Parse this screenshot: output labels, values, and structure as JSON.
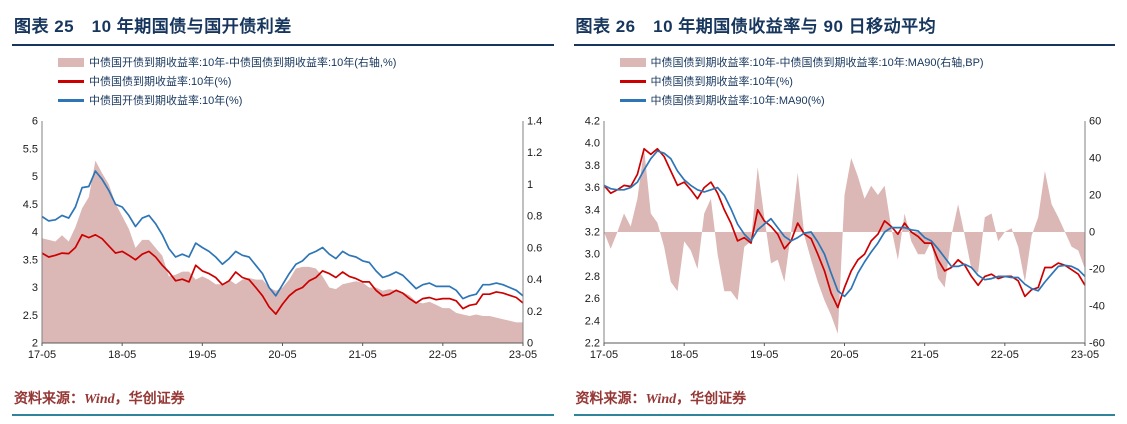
{
  "chart_data": [
    {
      "type": "line+area",
      "title": "图表 25　10 年期国债与国开债利差",
      "xlabel": "",
      "x_ticks": [
        "17-05",
        "18-05",
        "19-05",
        "20-05",
        "21-05",
        "22-05",
        "23-05"
      ],
      "x_tick_idx": [
        0,
        12,
        24,
        36,
        48,
        60,
        72
      ],
      "left_axis": {
        "min": 2,
        "max": 6,
        "ticks": [
          "6",
          "5.5",
          "5",
          "4.5",
          "4",
          "3.5",
          "3",
          "2.5",
          "2"
        ]
      },
      "right_axis": {
        "min": 0,
        "max": 1.4,
        "ticks": [
          "1.4",
          "1.2",
          "1",
          "0.8",
          "0.6",
          "0.4",
          "0.2",
          "0"
        ]
      },
      "legend": [
        {
          "label": "中债国开债到期收益率:10年-中债国债到期收益率:10年(右轴,%)",
          "color": "#dbb7b5",
          "kind": "area"
        },
        {
          "label": "中债国债到期收益率:10年(%)",
          "color": "#cc0000",
          "kind": "line"
        },
        {
          "label": "中债国开债到期收益率:10年(%)",
          "color": "#2e75b6",
          "kind": "line"
        }
      ],
      "series": [
        {
          "name": "spread-cdb-minus-cgb",
          "kind": "area",
          "axis": "right",
          "color": "#dbb7b5",
          "values": [
            0.66,
            0.65,
            0.64,
            0.68,
            0.64,
            0.73,
            0.85,
            0.92,
            1.15,
            1.07,
            1.0,
            0.88,
            0.8,
            0.72,
            0.6,
            0.65,
            0.65,
            0.6,
            0.55,
            0.42,
            0.43,
            0.45,
            0.45,
            0.4,
            0.42,
            0.4,
            0.37,
            0.37,
            0.4,
            0.37,
            0.4,
            0.41,
            0.4,
            0.4,
            0.35,
            0.33,
            0.35,
            0.4,
            0.47,
            0.48,
            0.48,
            0.47,
            0.42,
            0.35,
            0.34,
            0.37,
            0.38,
            0.39,
            0.38,
            0.35,
            0.35,
            0.33,
            0.34,
            0.33,
            0.32,
            0.3,
            0.26,
            0.25,
            0.26,
            0.24,
            0.22,
            0.22,
            0.19,
            0.18,
            0.17,
            0.18,
            0.17,
            0.17,
            0.16,
            0.15,
            0.14,
            0.13,
            0.13
          ]
        },
        {
          "name": "cgb-10y-yield",
          "kind": "line",
          "axis": "left",
          "color": "#cc0000",
          "values": [
            3.62,
            3.55,
            3.58,
            3.62,
            3.61,
            3.72,
            3.95,
            3.9,
            3.95,
            3.88,
            3.75,
            3.62,
            3.65,
            3.58,
            3.5,
            3.6,
            3.65,
            3.55,
            3.4,
            3.28,
            3.12,
            3.15,
            3.1,
            3.4,
            3.3,
            3.25,
            3.18,
            3.05,
            3.12,
            3.28,
            3.18,
            3.14,
            3.0,
            2.85,
            2.65,
            2.52,
            2.7,
            2.85,
            2.95,
            3.0,
            3.12,
            3.18,
            3.3,
            3.25,
            3.18,
            3.28,
            3.2,
            3.16,
            3.1,
            3.1,
            2.95,
            2.85,
            2.88,
            2.95,
            2.9,
            2.8,
            2.72,
            2.8,
            2.82,
            2.78,
            2.8,
            2.8,
            2.76,
            2.62,
            2.68,
            2.7,
            2.88,
            2.88,
            2.92,
            2.9,
            2.86,
            2.82,
            2.72
          ]
        },
        {
          "name": "cdb-10y-yield",
          "kind": "line",
          "axis": "left",
          "color": "#2e75b6",
          "values": [
            4.28,
            4.2,
            4.22,
            4.3,
            4.25,
            4.45,
            4.8,
            4.82,
            5.1,
            4.95,
            4.75,
            4.5,
            4.45,
            4.3,
            4.1,
            4.25,
            4.3,
            4.15,
            3.95,
            3.7,
            3.55,
            3.6,
            3.55,
            3.8,
            3.72,
            3.65,
            3.55,
            3.42,
            3.52,
            3.65,
            3.58,
            3.55,
            3.4,
            3.25,
            3.0,
            2.85,
            3.05,
            3.25,
            3.42,
            3.48,
            3.6,
            3.65,
            3.72,
            3.6,
            3.52,
            3.65,
            3.58,
            3.55,
            3.48,
            3.45,
            3.3,
            3.18,
            3.22,
            3.28,
            3.22,
            3.1,
            2.98,
            3.05,
            3.08,
            3.02,
            3.02,
            3.02,
            2.95,
            2.8,
            2.85,
            2.88,
            3.05,
            3.05,
            3.08,
            3.05,
            3.0,
            2.95,
            2.85
          ]
        }
      ],
      "source": {
        "prefix": "资料来源：",
        "wind": "Wind",
        "rest": "，华创证券"
      }
    },
    {
      "type": "line+area",
      "title": "图表 26　10 年期国债收益率与 90 日移动平均",
      "xlabel": "",
      "x_ticks": [
        "17-05",
        "18-05",
        "19-05",
        "20-05",
        "21-05",
        "22-05",
        "23-05"
      ],
      "x_tick_idx": [
        0,
        12,
        24,
        36,
        48,
        60,
        72
      ],
      "left_axis": {
        "min": 2.2,
        "max": 4.2,
        "ticks": [
          "4.2",
          "4.0",
          "3.8",
          "3.6",
          "3.4",
          "3.2",
          "3.0",
          "2.8",
          "2.6",
          "2.4",
          "2.2"
        ]
      },
      "right_axis": {
        "min": -60,
        "max": 60,
        "ticks": [
          "60",
          "40",
          "20",
          "0",
          "-20",
          "-40",
          "-60"
        ]
      },
      "legend": [
        {
          "label": "中债国债到期收益率:10年-中债国债到期收益率:10年:MA90(右轴,BP)",
          "color": "#dbb7b5",
          "kind": "area"
        },
        {
          "label": "中债国债到期收益率:10年(%)",
          "color": "#cc0000",
          "kind": "line"
        },
        {
          "label": "中债国债到期收益率:10年:MA90(%)",
          "color": "#2e75b6",
          "kind": "line"
        }
      ],
      "series": [
        {
          "name": "deviation-from-ma90-bp",
          "kind": "area",
          "axis": "right",
          "color": "#dbb7b5",
          "values": [
            0,
            -9,
            0,
            10,
            3,
            18,
            45,
            10,
            5,
            -8,
            -27,
            -32,
            -5,
            -10,
            -20,
            10,
            18,
            -12,
            -32,
            -32,
            -37,
            -8,
            -5,
            35,
            8,
            -17,
            -15,
            -27,
            0,
            32,
            -2,
            -15,
            -27,
            -37,
            -45,
            -55,
            20,
            40,
            30,
            18,
            25,
            20,
            25,
            2,
            -15,
            10,
            -5,
            -12,
            -12,
            -5,
            -25,
            -30,
            -2,
            15,
            -2,
            -20,
            -22,
            8,
            10,
            -5,
            0,
            2,
            -8,
            -27,
            -2,
            8,
            33,
            15,
            8,
            0,
            -8,
            -10,
            -20
          ]
        },
        {
          "name": "cgb-10y-yield",
          "kind": "line",
          "axis": "left",
          "color": "#cc0000",
          "values": [
            3.62,
            3.55,
            3.58,
            3.62,
            3.61,
            3.72,
            3.95,
            3.9,
            3.95,
            3.88,
            3.75,
            3.62,
            3.65,
            3.58,
            3.5,
            3.6,
            3.65,
            3.55,
            3.4,
            3.28,
            3.12,
            3.15,
            3.1,
            3.4,
            3.3,
            3.25,
            3.18,
            3.05,
            3.12,
            3.28,
            3.18,
            3.14,
            3.0,
            2.85,
            2.65,
            2.52,
            2.7,
            2.85,
            2.95,
            3.0,
            3.12,
            3.18,
            3.3,
            3.25,
            3.18,
            3.28,
            3.2,
            3.16,
            3.1,
            3.1,
            2.95,
            2.85,
            2.88,
            2.95,
            2.9,
            2.8,
            2.72,
            2.8,
            2.82,
            2.78,
            2.8,
            2.8,
            2.76,
            2.62,
            2.68,
            2.7,
            2.88,
            2.88,
            2.92,
            2.9,
            2.86,
            2.82,
            2.72
          ]
        },
        {
          "name": "cgb-10y-ma90",
          "kind": "line",
          "axis": "left",
          "color": "#2e75b6",
          "values": [
            3.62,
            3.59,
            3.58,
            3.58,
            3.6,
            3.65,
            3.76,
            3.86,
            3.93,
            3.91,
            3.86,
            3.75,
            3.67,
            3.62,
            3.58,
            3.56,
            3.58,
            3.6,
            3.53,
            3.41,
            3.27,
            3.18,
            3.12,
            3.22,
            3.27,
            3.32,
            3.24,
            3.16,
            3.12,
            3.15,
            3.19,
            3.2,
            3.11,
            3.0,
            2.83,
            2.67,
            2.62,
            2.69,
            2.83,
            2.93,
            3.02,
            3.1,
            3.2,
            3.24,
            3.24,
            3.24,
            3.22,
            3.21,
            3.15,
            3.12,
            3.05,
            2.97,
            2.89,
            2.89,
            2.91,
            2.88,
            2.81,
            2.77,
            2.78,
            2.8,
            2.8,
            2.79,
            2.79,
            2.73,
            2.69,
            2.67,
            2.75,
            2.82,
            2.89,
            2.9,
            2.89,
            2.86,
            2.8
          ]
        }
      ],
      "source": {
        "prefix": "资料来源：",
        "wind": "Wind",
        "rest": "，华创证券"
      }
    }
  ],
  "colors": {
    "title_navy": "#17365d",
    "source_red": "#953735",
    "bottom_rule_teal": "#2f849b",
    "area_pink": "#dbb7b5",
    "line_red": "#cc0000",
    "line_blue": "#2e75b6"
  }
}
